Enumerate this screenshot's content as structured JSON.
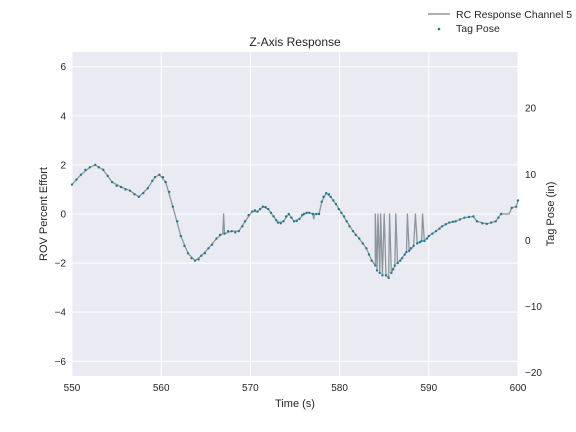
{
  "chart_data": {
    "type": "line",
    "title": "Z-Axis Response",
    "xlabel": "Time (s)",
    "ylabel_left": "ROV Percent Effort",
    "ylabel_right": "Tag Pose (in)",
    "xlim": [
      550,
      600
    ],
    "ylim_left": [
      -6.6,
      6.6
    ],
    "ylim_right": [
      -20.5,
      28.5
    ],
    "x_ticks": [
      550,
      560,
      570,
      580,
      590,
      600
    ],
    "y_ticks_left": [
      -6,
      -4,
      -2,
      0,
      2,
      4,
      6
    ],
    "y_ticks_right": [
      -20,
      -10,
      0,
      10,
      20
    ],
    "grid": true,
    "legend_position": "top-right outside",
    "colors": {
      "background": "#EAEAF2",
      "grid": "#FFFFFF",
      "line": "#8C979C",
      "points": "#1F7A8C"
    },
    "series": [
      {
        "name": "RC Response Channel 5",
        "kind": "line",
        "axis": "left",
        "points": [
          [
            550.0,
            1.2
          ],
          [
            551.0,
            1.6
          ],
          [
            552.0,
            1.9
          ],
          [
            552.6,
            2.0
          ],
          [
            553.5,
            1.8
          ],
          [
            554.5,
            1.3
          ],
          [
            555.5,
            1.1
          ],
          [
            556.5,
            0.95
          ],
          [
            557.5,
            0.7
          ],
          [
            558.5,
            1.05
          ],
          [
            559.3,
            1.5
          ],
          [
            559.8,
            1.6
          ],
          [
            560.5,
            1.3
          ],
          [
            561.3,
            0.3
          ],
          [
            562.2,
            -0.9
          ],
          [
            563.0,
            -1.6
          ],
          [
            563.8,
            -1.9
          ],
          [
            564.5,
            -1.7
          ],
          [
            565.3,
            -1.4
          ],
          [
            566.2,
            -1.0
          ],
          [
            566.9,
            -0.8
          ],
          [
            567.0,
            0.0
          ],
          [
            567.1,
            -0.8
          ],
          [
            567.9,
            -0.7
          ],
          [
            568.7,
            -0.7
          ],
          [
            569.4,
            -0.3
          ],
          [
            570.2,
            0.1
          ],
          [
            570.8,
            0.1
          ],
          [
            571.4,
            0.3
          ],
          [
            572.0,
            0.2
          ],
          [
            572.6,
            -0.1
          ],
          [
            573.1,
            -0.35
          ],
          [
            573.7,
            -0.3
          ],
          [
            574.3,
            0.0
          ],
          [
            574.9,
            -0.3
          ],
          [
            575.5,
            -0.2
          ],
          [
            576.0,
            0.0
          ],
          [
            576.6,
            0.05
          ],
          [
            577.0,
            0.0
          ],
          [
            577.1,
            -0.2
          ],
          [
            577.2,
            0.0
          ],
          [
            577.7,
            0.0
          ],
          [
            578.0,
            0.5
          ],
          [
            578.5,
            0.85
          ],
          [
            579.0,
            0.7
          ],
          [
            579.6,
            0.4
          ],
          [
            580.2,
            0.05
          ],
          [
            580.8,
            -0.3
          ],
          [
            581.5,
            -0.7
          ],
          [
            582.2,
            -1.0
          ],
          [
            583.0,
            -1.4
          ],
          [
            583.6,
            -1.9
          ],
          [
            584.0,
            -2.1
          ],
          [
            584.0,
            0.0
          ],
          [
            584.2,
            -2.3
          ],
          [
            584.3,
            0.0
          ],
          [
            584.5,
            -2.4
          ],
          [
            584.6,
            0.0
          ],
          [
            584.8,
            -2.5
          ],
          [
            585.0,
            0.0
          ],
          [
            585.2,
            -2.5
          ],
          [
            585.5,
            -2.6
          ],
          [
            585.6,
            0.0
          ],
          [
            585.8,
            -2.4
          ],
          [
            586.2,
            -2.1
          ],
          [
            586.3,
            0.0
          ],
          [
            586.5,
            -2.0
          ],
          [
            587.0,
            -1.8
          ],
          [
            587.5,
            -1.55
          ],
          [
            587.6,
            0.0
          ],
          [
            587.8,
            -1.5
          ],
          [
            588.3,
            -1.3
          ],
          [
            588.5,
            0.0
          ],
          [
            588.7,
            -1.2
          ],
          [
            589.2,
            -1.1
          ],
          [
            589.3,
            0.0
          ],
          [
            589.5,
            -1.1
          ],
          [
            590.0,
            -0.9
          ],
          [
            590.8,
            -0.7
          ],
          [
            591.5,
            -0.5
          ],
          [
            592.3,
            -0.35
          ],
          [
            593.0,
            -0.3
          ],
          [
            594.0,
            -0.15
          ],
          [
            595.0,
            -0.1
          ],
          [
            595.4,
            -0.3
          ],
          [
            596.5,
            -0.4
          ],
          [
            597.5,
            -0.3
          ],
          [
            598.1,
            0.0
          ],
          [
            598.9,
            0.0
          ],
          [
            599.0,
            0.0
          ],
          [
            599.3,
            0.25
          ],
          [
            599.8,
            0.3
          ],
          [
            600.0,
            0.55
          ]
        ]
      },
      {
        "name": "Tag Pose",
        "kind": "scatter",
        "axis": "left",
        "points": [
          [
            550.0,
            1.2
          ],
          [
            550.5,
            1.4
          ],
          [
            551.0,
            1.6
          ],
          [
            551.5,
            1.8
          ],
          [
            552.0,
            1.9
          ],
          [
            552.6,
            2.0
          ],
          [
            553.0,
            1.9
          ],
          [
            553.5,
            1.8
          ],
          [
            554.0,
            1.55
          ],
          [
            554.5,
            1.3
          ],
          [
            555.0,
            1.15
          ],
          [
            555.5,
            1.1
          ],
          [
            556.0,
            1.0
          ],
          [
            556.5,
            0.95
          ],
          [
            557.0,
            0.8
          ],
          [
            557.5,
            0.7
          ],
          [
            558.0,
            0.85
          ],
          [
            558.5,
            1.05
          ],
          [
            559.0,
            1.35
          ],
          [
            559.3,
            1.5
          ],
          [
            559.8,
            1.6
          ],
          [
            560.2,
            1.5
          ],
          [
            560.5,
            1.3
          ],
          [
            560.9,
            0.9
          ],
          [
            561.3,
            0.3
          ],
          [
            561.8,
            -0.3
          ],
          [
            562.2,
            -0.9
          ],
          [
            562.6,
            -1.3
          ],
          [
            563.0,
            -1.6
          ],
          [
            563.4,
            -1.8
          ],
          [
            563.8,
            -1.9
          ],
          [
            564.2,
            -1.85
          ],
          [
            564.5,
            -1.7
          ],
          [
            564.9,
            -1.6
          ],
          [
            565.3,
            -1.4
          ],
          [
            565.7,
            -1.25
          ],
          [
            566.2,
            -1.0
          ],
          [
            566.6,
            -0.85
          ],
          [
            567.1,
            -0.8
          ],
          [
            567.5,
            -0.7
          ],
          [
            567.9,
            -0.7
          ],
          [
            568.3,
            -0.75
          ],
          [
            568.7,
            -0.7
          ],
          [
            569.1,
            -0.5
          ],
          [
            569.4,
            -0.3
          ],
          [
            569.8,
            -0.05
          ],
          [
            570.2,
            0.1
          ],
          [
            570.5,
            0.15
          ],
          [
            570.8,
            0.1
          ],
          [
            571.1,
            0.2
          ],
          [
            571.4,
            0.3
          ],
          [
            571.7,
            0.28
          ],
          [
            572.0,
            0.2
          ],
          [
            572.3,
            0.05
          ],
          [
            572.6,
            -0.1
          ],
          [
            572.9,
            -0.25
          ],
          [
            573.1,
            -0.35
          ],
          [
            573.4,
            -0.38
          ],
          [
            573.7,
            -0.3
          ],
          [
            574.0,
            -0.1
          ],
          [
            574.3,
            0.0
          ],
          [
            574.6,
            -0.15
          ],
          [
            574.9,
            -0.3
          ],
          [
            575.2,
            -0.28
          ],
          [
            575.5,
            -0.2
          ],
          [
            575.8,
            -0.05
          ],
          [
            576.0,
            0.0
          ],
          [
            576.3,
            0.05
          ],
          [
            576.6,
            0.05
          ],
          [
            577.0,
            0.0
          ],
          [
            577.4,
            0.0
          ],
          [
            577.7,
            0.0
          ],
          [
            578.0,
            0.5
          ],
          [
            578.2,
            0.7
          ],
          [
            578.5,
            0.85
          ],
          [
            578.8,
            0.8
          ],
          [
            579.0,
            0.7
          ],
          [
            579.3,
            0.55
          ],
          [
            579.6,
            0.4
          ],
          [
            579.9,
            0.2
          ],
          [
            580.2,
            0.05
          ],
          [
            580.5,
            -0.1
          ],
          [
            580.8,
            -0.3
          ],
          [
            581.1,
            -0.5
          ],
          [
            581.5,
            -0.7
          ],
          [
            581.8,
            -0.85
          ],
          [
            582.2,
            -1.0
          ],
          [
            582.6,
            -1.2
          ],
          [
            583.0,
            -1.4
          ],
          [
            583.3,
            -1.65
          ],
          [
            583.6,
            -1.9
          ],
          [
            584.0,
            -2.1
          ],
          [
            584.2,
            -2.3
          ],
          [
            584.5,
            -2.4
          ],
          [
            584.8,
            -2.5
          ],
          [
            585.2,
            -2.5
          ],
          [
            585.5,
            -2.6
          ],
          [
            585.8,
            -2.4
          ],
          [
            586.0,
            -2.25
          ],
          [
            586.2,
            -2.1
          ],
          [
            586.5,
            -2.0
          ],
          [
            586.8,
            -1.9
          ],
          [
            587.0,
            -1.8
          ],
          [
            587.3,
            -1.65
          ],
          [
            587.5,
            -1.55
          ],
          [
            587.8,
            -1.5
          ],
          [
            588.0,
            -1.4
          ],
          [
            588.3,
            -1.3
          ],
          [
            588.7,
            -1.2
          ],
          [
            589.0,
            -1.15
          ],
          [
            589.2,
            -1.1
          ],
          [
            589.5,
            -1.1
          ],
          [
            589.8,
            -1.0
          ],
          [
            590.0,
            -0.9
          ],
          [
            590.4,
            -0.8
          ],
          [
            590.8,
            -0.7
          ],
          [
            591.2,
            -0.6
          ],
          [
            591.5,
            -0.5
          ],
          [
            591.9,
            -0.42
          ],
          [
            592.3,
            -0.35
          ],
          [
            592.7,
            -0.32
          ],
          [
            593.0,
            -0.3
          ],
          [
            593.5,
            -0.22
          ],
          [
            594.0,
            -0.15
          ],
          [
            594.5,
            -0.12
          ],
          [
            595.0,
            -0.1
          ],
          [
            595.4,
            -0.3
          ],
          [
            596.0,
            -0.38
          ],
          [
            596.5,
            -0.4
          ],
          [
            597.0,
            -0.35
          ],
          [
            597.5,
            -0.3
          ],
          [
            597.8,
            -0.15
          ],
          [
            598.1,
            0.0
          ],
          [
            599.3,
            0.25
          ],
          [
            599.8,
            0.3
          ],
          [
            600.0,
            0.55
          ]
        ]
      }
    ]
  }
}
